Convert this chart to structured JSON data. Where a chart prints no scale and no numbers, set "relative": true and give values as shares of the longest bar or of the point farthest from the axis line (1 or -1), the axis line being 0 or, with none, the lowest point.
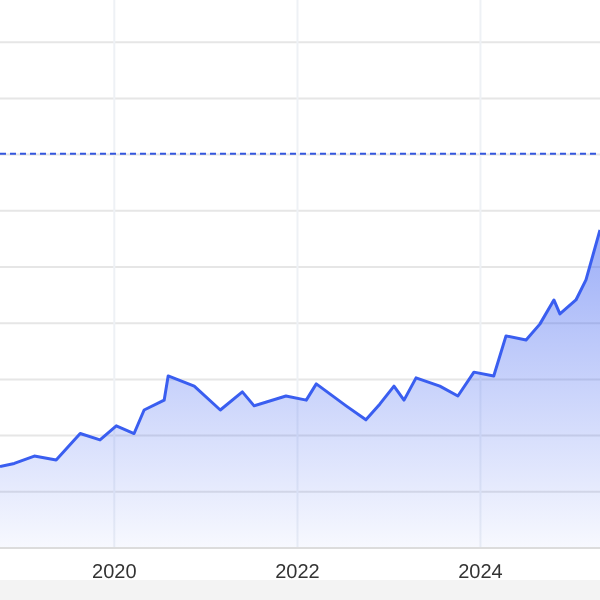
{
  "chart_data": {
    "type": "area",
    "relative": true,
    "x": [
      "2018-10-02",
      "2018-11-28",
      "2019-02-16",
      "2019-05-14",
      "2019-08-18",
      "2019-11-05",
      "2020-01-09",
      "2020-03-20",
      "2020-04-29",
      "2020-07-18",
      "2020-08-03",
      "2020-11-15",
      "2021-02-27",
      "2021-05-26",
      "2021-07-12",
      "2021-11-16",
      "2022-02-05",
      "2022-03-17",
      "2022-07-14",
      "2022-10-01",
      "2022-11-26",
      "2023-01-21",
      "2023-03-02",
      "2023-04-19",
      "2023-07-23",
      "2023-10-03",
      "2023-12-06",
      "2024-02-23",
      "2024-04-12",
      "2024-07-01",
      "2024-08-25",
      "2024-10-20",
      "2024-11-13",
      "2025-01-16",
      "2025-02-25",
      "2025-04-22"
    ],
    "series": [
      {
        "color": "#3a5ef0",
        "values": [
          0.256,
          0.266,
          0.289,
          0.277,
          0.36,
          0.34,
          0.384,
          0.36,
          0.434,
          0.465,
          0.541,
          0.509,
          0.434,
          0.491,
          0.447,
          0.478,
          0.465,
          0.516,
          0.447,
          0.403,
          0.453,
          0.509,
          0.465,
          0.535,
          0.509,
          0.478,
          0.553,
          0.541,
          0.667,
          0.654,
          0.704,
          0.78,
          0.736,
          0.78,
          0.843,
          1.0
        ]
      }
    ],
    "xlim": [
      "2018-10-02",
      "2025-04-22"
    ],
    "xticks": [
      {
        "value": "2020-01-01",
        "label": "2020"
      },
      {
        "value": "2022-01-01",
        "label": "2022"
      },
      {
        "value": "2024-01-01",
        "label": "2024"
      }
    ],
    "ref_lines": [
      {
        "axis": "y",
        "value": 1.24,
        "color": "#3355dd",
        "line_style": "dashed"
      }
    ],
    "grid": true
  }
}
